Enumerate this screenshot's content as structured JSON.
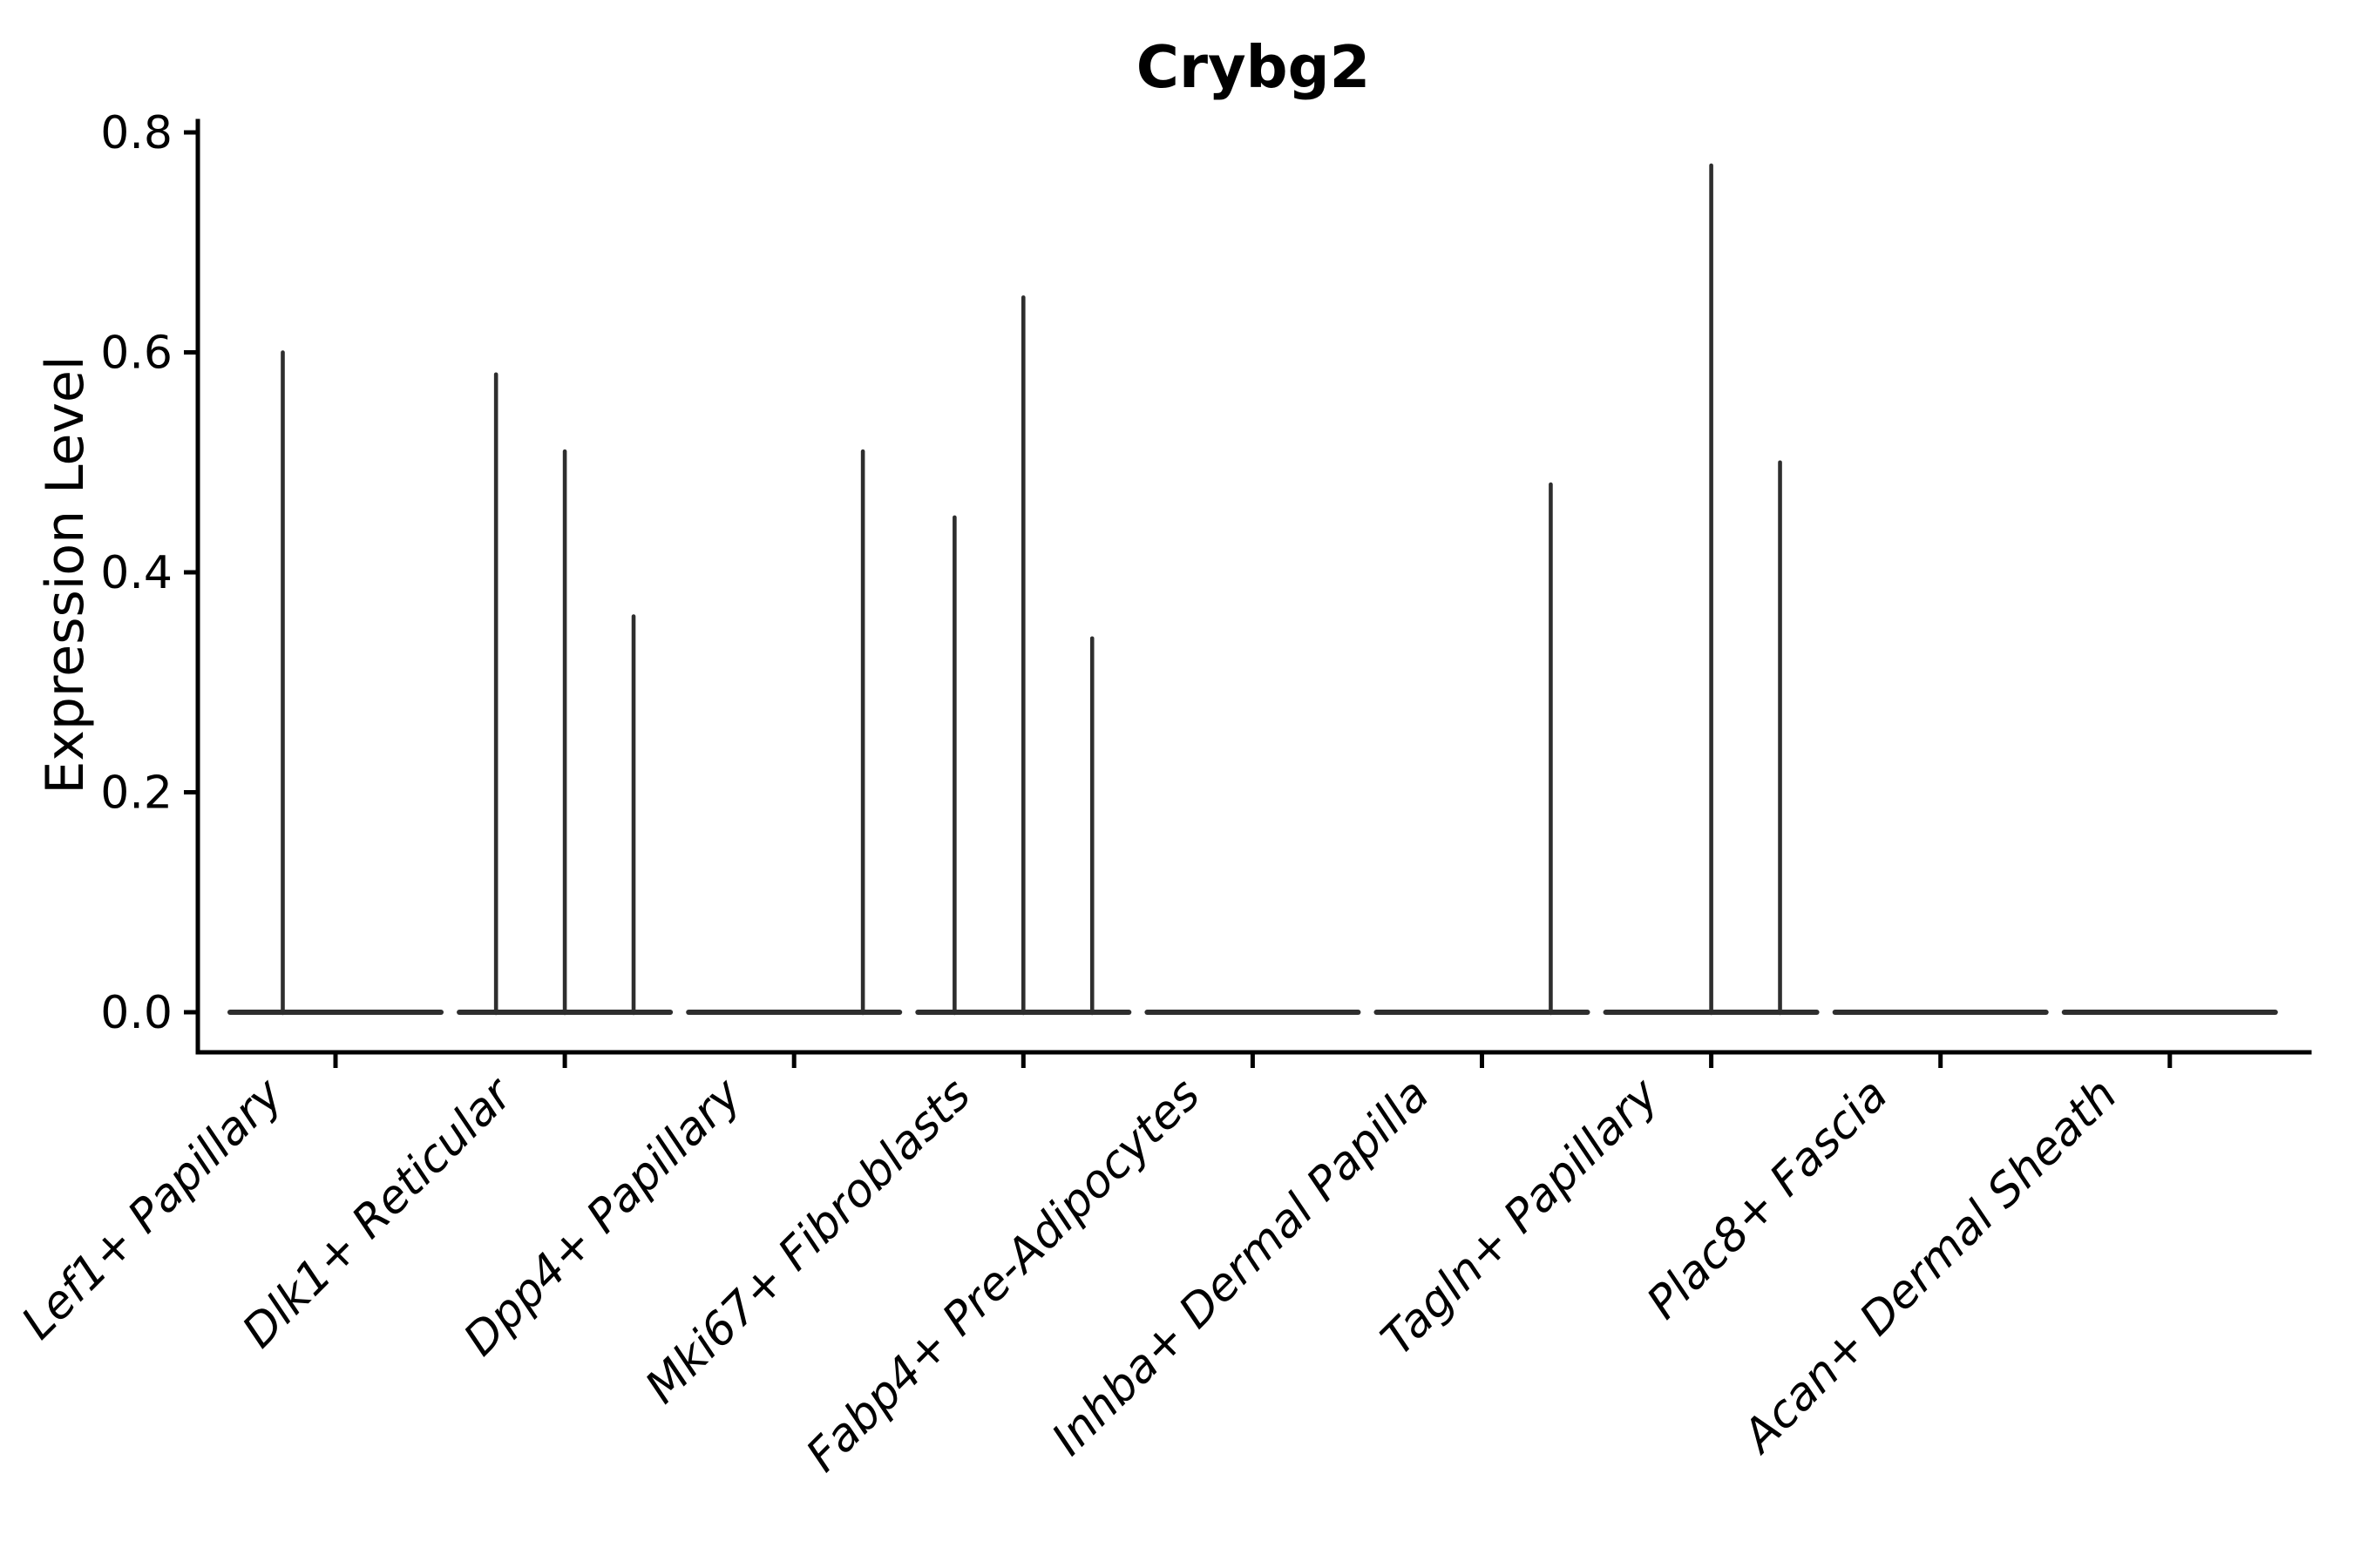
{
  "chart_data": {
    "type": "violin",
    "title": "Crybg2",
    "ylabel": "Expression Level",
    "ylim": [
      0.0,
      0.8
    ],
    "yticks": [
      {
        "value": 0.0,
        "label": "0.0"
      },
      {
        "value": 0.2,
        "label": "0.2"
      },
      {
        "value": 0.4,
        "label": "0.4"
      },
      {
        "value": 0.6,
        "label": "0.6"
      },
      {
        "value": 0.8,
        "label": "0.8"
      }
    ],
    "grid": false,
    "legend": "none",
    "xlabel": "",
    "categories": [
      {
        "label": "Lef1+ Papillary",
        "spikes": [
          {
            "offset": -0.23,
            "value": 0.6
          }
        ]
      },
      {
        "label": "Dlk1+ Reticular",
        "spikes": [
          {
            "offset": -0.3,
            "value": 0.58
          },
          {
            "offset": 0.0,
            "value": 0.51
          },
          {
            "offset": 0.3,
            "value": 0.36
          }
        ]
      },
      {
        "label": "Dpp4+ Papillary",
        "spikes": [
          {
            "offset": 0.3,
            "value": 0.51
          }
        ]
      },
      {
        "label": "Mki67+ Fibroblasts",
        "spikes": [
          {
            "offset": -0.3,
            "value": 0.45
          },
          {
            "offset": 0.0,
            "value": 0.65
          },
          {
            "offset": 0.3,
            "value": 0.34
          }
        ]
      },
      {
        "label": "Fabp4+ Pre-Adipocytes",
        "spikes": []
      },
      {
        "label": "Inhba+ Dermal Papilla",
        "spikes": [
          {
            "offset": 0.3,
            "value": 0.48
          }
        ]
      },
      {
        "label": "Tagln+ Papillary",
        "spikes": [
          {
            "offset": 0.0,
            "value": 0.77
          },
          {
            "offset": 0.3,
            "value": 0.5
          }
        ]
      },
      {
        "label": "Plac8+ Fascia",
        "spikes": []
      },
      {
        "label": "Acan+ Dermal Sheath",
        "spikes": []
      }
    ],
    "baseline_halfwidth_frac": 0.46,
    "colors": {
      "violin": "#2e2e2e",
      "axis": "#000000",
      "text": "#000000",
      "background": "#ffffff"
    }
  }
}
